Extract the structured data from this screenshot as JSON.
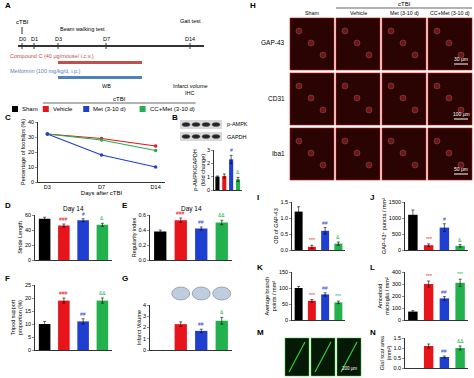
{
  "chart_data": [
    {
      "panel": "C",
      "type": "line",
      "categories": [
        "D3",
        "D7",
        "D14"
      ],
      "marker": "circle",
      "series": [
        {
          "name": "Vehicle",
          "color": "#e8141c",
          "values": [
            32,
            29,
            24
          ]
        },
        {
          "name": "CC+Met (3-10 d)",
          "color": "#22b14c",
          "values": [
            32,
            28,
            21
          ]
        },
        {
          "name": "Met (3-10 d)",
          "color": "#1f3fd1",
          "values": [
            32,
            18,
            10
          ]
        }
      ],
      "ylim": [
        0,
        40
      ],
      "yticks": [
        0,
        10,
        20,
        30,
        40
      ],
      "grid": false,
      "xlabel": "Days after cTBI",
      "ylabel": "Percentage of footslips (%)"
    },
    {
      "panel": "B",
      "type": "bar",
      "categories": [
        "Sham",
        "Vehicle",
        "Met (3-10 d)",
        "CC+Met (3-10 d)"
      ],
      "colors": [
        "#000000",
        "#e8141c",
        "#1f3fd1",
        "#22b14c"
      ],
      "values": [
        1,
        1.05,
        2.3,
        0.8
      ],
      "errors": [
        0.05,
        0.15,
        0.3,
        0.15
      ],
      "annotations": [
        null,
        null,
        "#",
        "&"
      ],
      "ylim": [
        0,
        3
      ],
      "yticks": [
        0,
        1,
        2,
        3
      ],
      "grid": false,
      "tick_labels": "y",
      "ylabel": "p-AMPK/GAPDH\n(fold change)",
      "blot": [
        "p-AMPK",
        "GAPDH"
      ]
    },
    {
      "panel": "D",
      "type": "bar",
      "title": "Day 14",
      "categories": [
        "Sham",
        "Vehicle",
        "Met (3-10 d)",
        "CC+Met (3-10 d)"
      ],
      "colors": [
        "#000000",
        "#e8141c",
        "#1f3fd1",
        "#22b14c"
      ],
      "values": [
        55,
        46,
        53,
        47
      ],
      "errors": [
        2,
        2,
        2,
        2
      ],
      "annotations": [
        null,
        "###",
        "#",
        "&"
      ],
      "ylim": [
        0,
        60
      ],
      "yticks": [
        0,
        20,
        40,
        60
      ],
      "grid": false,
      "tick_labels": "y",
      "ylabel": "Stride Length"
    },
    {
      "panel": "E",
      "type": "bar",
      "title": "Day 14",
      "categories": [
        "Sham",
        "Vehicle",
        "Met (3-10 d)",
        "CC+Met (3-10 d)"
      ],
      "colors": [
        "#000000",
        "#e8141c",
        "#1f3fd1",
        "#22b14c"
      ],
      "values": [
        0.38,
        0.53,
        0.42,
        0.5
      ],
      "errors": [
        0.02,
        0.03,
        0.02,
        0.03
      ],
      "annotations": [
        null,
        "###",
        "##",
        "&&"
      ],
      "ylim": [
        0,
        0.6
      ],
      "yticks": [
        {
          "value": 0,
          "label": "0.0"
        },
        0.2,
        0.4,
        0.6
      ],
      "grid": false,
      "tick_labels": "y",
      "ylabel": "Regularity index"
    },
    {
      "panel": "F",
      "type": "bar",
      "categories": [
        "Sham",
        "Vehicle",
        "Met (3-10 d)",
        "CC+Met (3-10 d)"
      ],
      "colors": [
        "#000000",
        "#e8141c",
        "#1f3fd1",
        "#22b14c"
      ],
      "values": [
        10,
        19,
        11,
        19
      ],
      "errors": [
        1,
        1,
        1,
        1
      ],
      "annotations": [
        null,
        "###",
        "##",
        "&&"
      ],
      "ylim": [
        0,
        25
      ],
      "yticks": [
        0,
        5,
        10,
        15,
        20,
        25
      ],
      "grid": false,
      "tick_labels": "y",
      "ylabel": "Tripod support\nproportion (%)"
    },
    {
      "panel": "G",
      "type": "bar",
      "categories": [
        "Sham",
        "Vehicle",
        "Met (3-10 d)",
        "CC+Met (3-10 d)"
      ],
      "colors": [
        "#000000",
        "#e8141c",
        "#1f3fd1",
        "#22b14c"
      ],
      "values": [
        null,
        2.3,
        1.7,
        2.6
      ],
      "errors": [
        null,
        0.2,
        0.15,
        0.3
      ],
      "annotations": [
        null,
        null,
        "##",
        "&"
      ],
      "ylim": [
        0,
        4
      ],
      "yticks": [
        0,
        1,
        2,
        3,
        4
      ],
      "grid": false,
      "tick_labels": "y",
      "ylabel": "Infarct Volume"
    },
    {
      "panel": "I",
      "type": "bar",
      "categories": [
        "Sham",
        "Vehicle",
        "Met (3-10 d)",
        "CC+Met (3-10 d)"
      ],
      "colors": [
        "#000000",
        "#e8141c",
        "#1f3fd1",
        "#22b14c"
      ],
      "values": [
        1.2,
        0.1,
        0.6,
        0.2
      ],
      "errors": [
        0.15,
        0.05,
        0.1,
        0.05
      ],
      "annotations": [
        null,
        "***",
        "##",
        "&"
      ],
      "ylim": [
        0,
        1.5
      ],
      "yticks": [
        {
          "value": 0,
          "label": "0.0"
        },
        0.5,
        {
          "value": 1,
          "label": "1.0"
        },
        1.5
      ],
      "grid": false,
      "tick_labels": "y",
      "ylabel": "OD of GAP-43"
    },
    {
      "panel": "J",
      "type": "bar",
      "categories": [
        "Sham",
        "Vehicle",
        "Met (3-10 d)",
        "CC+Met (3-10 d)"
      ],
      "colors": [
        "#000000",
        "#e8141c",
        "#1f3fd1",
        "#22b14c"
      ],
      "values": [
        1100,
        150,
        700,
        130
      ],
      "errors": [
        150,
        40,
        120,
        40
      ],
      "annotations": [
        null,
        "***",
        "#",
        "&"
      ],
      "ylim": [
        0,
        1500
      ],
      "yticks": [
        0,
        500,
        1000,
        1500
      ],
      "grid": false,
      "tick_labels": "y",
      "ylabel": "GAP-43⁺ puncta / mm²"
    },
    {
      "panel": "K",
      "type": "bar",
      "categories": [
        "Sham",
        "Vehicle",
        "Met (3-10 d)",
        "CC+Met (3-10 d)"
      ],
      "colors": [
        "#000000",
        "#e8141c",
        "#1f3fd1",
        "#22b14c"
      ],
      "values": [
        100,
        60,
        80,
        55
      ],
      "errors": [
        5,
        4,
        5,
        4
      ],
      "annotations": [
        null,
        "***",
        "##",
        "***"
      ],
      "ylim": [
        0,
        150
      ],
      "yticks": [
        0,
        50,
        100,
        150
      ],
      "grid": false,
      "tick_labels": "y",
      "ylabel": "Average branch\npoints / mm²"
    },
    {
      "panel": "L",
      "type": "bar",
      "categories": [
        "Sham",
        "Vehicle",
        "Met (3-10 d)",
        "CC+Met (3-10 d)"
      ],
      "colors": [
        "#000000",
        "#e8141c",
        "#1f3fd1",
        "#22b14c"
      ],
      "values": [
        70,
        300,
        180,
        310
      ],
      "errors": [
        8,
        25,
        15,
        30
      ],
      "annotations": [
        null,
        "***",
        "##",
        "***"
      ],
      "ylim": [
        0,
        400
      ],
      "yticks": [
        0,
        100,
        200,
        300,
        400
      ],
      "grid": false,
      "tick_labels": "y",
      "ylabel": "Amoeboid\nmicroglia / mm²"
    },
    {
      "panel": "N",
      "type": "bar",
      "categories": [
        "Sham",
        "Vehicle",
        "Met (3-10 d)",
        "CC+Met (3-10 d)"
      ],
      "colors": [
        "#000000",
        "#e8141c",
        "#1f3fd1",
        "#22b14c"
      ],
      "values": [
        null,
        1.1,
        0.55,
        1.0
      ],
      "errors": [
        null,
        0.1,
        0.05,
        0.1
      ],
      "annotations": [
        null,
        null,
        "##",
        "&&"
      ],
      "ylim": [
        0,
        1.5
      ],
      "yticks": [
        {
          "value": 0,
          "label": "0.0"
        },
        0.5,
        {
          "value": 1,
          "label": "1.0"
        },
        1.5
      ],
      "grid": false,
      "tick_labels": "y",
      "ylabel": "Gial scar area\n(mm²)"
    }
  ],
  "protocol": {
    "panel": "A",
    "injury": "cTBI",
    "days": [
      "D0",
      "D1",
      "D3",
      "D7",
      "D14"
    ],
    "tests": [
      {
        "day": "D3",
        "text": "Beam walking test"
      },
      {
        "day": "D14",
        "text": "Gait test"
      }
    ],
    "treatments": [
      {
        "from": "D3",
        "text": "Compound C (40 μg/mouse/ i.c.v.)",
        "color": "#c0504d"
      },
      {
        "from": "D3",
        "text": "Metformin (100 mg/kg/d, i.p.)",
        "color": "#4f81bd"
      }
    ],
    "endpoints": [
      {
        "day": "D7",
        "text": "WB"
      },
      {
        "day": "D14",
        "text": "Infarct volume"
      },
      {
        "day": "D14",
        "text": "IHC"
      }
    ]
  },
  "group_legend": {
    "group": "cTBI",
    "items": [
      {
        "name": "Sham",
        "color": "#000000",
        "in_group": false
      },
      {
        "name": "Vehicle",
        "color": "#e8141c",
        "in_group": true
      },
      {
        "name": "Met (3-10 d)",
        "color": "#1f3fd1",
        "in_group": true
      },
      {
        "name": "CC+Met (3-10 d)",
        "color": "#22b14c",
        "in_group": true
      }
    ]
  },
  "imaging": {
    "panel": "H",
    "group": "cTBI",
    "color": "#d01010",
    "columns": [
      "Sham",
      "Vehicle",
      "Met (3-10 d)",
      "CC+Met (3-10 d)"
    ],
    "rows": [
      {
        "label": "GAP-43",
        "scale": "30 μm"
      },
      {
        "label": "CD31",
        "scale": "100 μm"
      },
      {
        "label": "Iba1",
        "scale": "50 μm"
      }
    ]
  },
  "glia_images": {
    "panel": "M",
    "scale": "200 μm",
    "color": "#2fd02f"
  }
}
